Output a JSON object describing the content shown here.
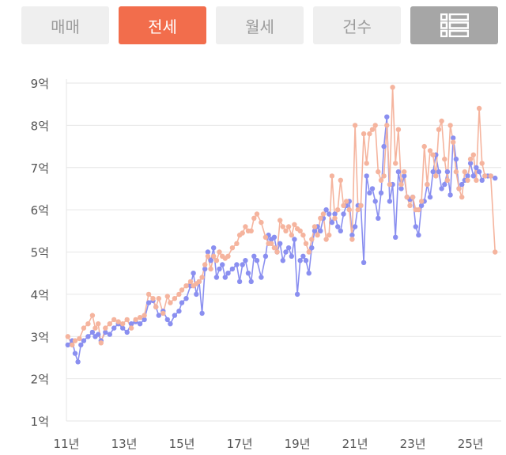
{
  "tabs": [
    {
      "label": "매매",
      "active": false
    },
    {
      "label": "전세",
      "active": true
    },
    {
      "label": "월세",
      "active": false
    },
    {
      "label": "건수",
      "active": false
    }
  ],
  "list_view_icon": "list-view-icon",
  "colors": {
    "accent": "#f26d4c",
    "series_blue": "#8a8ff0",
    "series_pink": "#f5b49e",
    "gridline": "#e6e6e6",
    "tab_inactive_bg": "#efefef",
    "icon_tab_bg": "#a6a6a6"
  },
  "chart_data": {
    "type": "line",
    "xlabel": "",
    "ylabel": "",
    "x_tick_labels": [
      "11년",
      "13년",
      "15년",
      "17년",
      "19년",
      "21년",
      "23년",
      "25년"
    ],
    "x_ticks": [
      2011,
      2013,
      2015,
      2017,
      2019,
      2021,
      2023,
      2025
    ],
    "y_tick_labels": [
      "1억",
      "2억",
      "3억",
      "4억",
      "5억",
      "6억",
      "7억",
      "8억",
      "9억"
    ],
    "y_ticks": [
      1,
      2,
      3,
      4,
      5,
      6,
      7,
      8,
      9
    ],
    "xlim": [
      2011,
      2025.9
    ],
    "ylim": [
      1,
      9
    ],
    "grid": true,
    "series": [
      {
        "color": "#8a8ff0",
        "points": [
          [
            2011.05,
            2.8
          ],
          [
            2011.2,
            2.9
          ],
          [
            2011.3,
            2.6
          ],
          [
            2011.4,
            2.4
          ],
          [
            2011.5,
            2.8
          ],
          [
            2011.6,
            2.9
          ],
          [
            2011.75,
            3.0
          ],
          [
            2011.9,
            3.1
          ],
          [
            2012.0,
            3.0
          ],
          [
            2012.1,
            3.05
          ],
          [
            2012.2,
            2.9
          ],
          [
            2012.35,
            3.1
          ],
          [
            2012.5,
            3.05
          ],
          [
            2012.65,
            3.2
          ],
          [
            2012.8,
            3.3
          ],
          [
            2012.95,
            3.2
          ],
          [
            2013.1,
            3.1
          ],
          [
            2013.25,
            3.3
          ],
          [
            2013.4,
            3.35
          ],
          [
            2013.55,
            3.3
          ],
          [
            2013.7,
            3.4
          ],
          [
            2013.85,
            3.8
          ],
          [
            2014.0,
            3.85
          ],
          [
            2014.1,
            3.7
          ],
          [
            2014.2,
            3.5
          ],
          [
            2014.35,
            3.6
          ],
          [
            2014.5,
            3.4
          ],
          [
            2014.6,
            3.3
          ],
          [
            2014.75,
            3.5
          ],
          [
            2014.9,
            3.6
          ],
          [
            2015.0,
            3.8
          ],
          [
            2015.15,
            3.9
          ],
          [
            2015.3,
            4.2
          ],
          [
            2015.4,
            4.5
          ],
          [
            2015.5,
            4.0
          ],
          [
            2015.6,
            4.3
          ],
          [
            2015.7,
            3.55
          ],
          [
            2015.8,
            4.6
          ],
          [
            2015.9,
            5.0
          ],
          [
            2016.0,
            4.8
          ],
          [
            2016.1,
            5.1
          ],
          [
            2016.2,
            4.4
          ],
          [
            2016.3,
            4.6
          ],
          [
            2016.4,
            4.7
          ],
          [
            2016.5,
            4.4
          ],
          [
            2016.6,
            4.5
          ],
          [
            2016.75,
            4.6
          ],
          [
            2016.9,
            4.7
          ],
          [
            2017.0,
            4.3
          ],
          [
            2017.1,
            4.7
          ],
          [
            2017.2,
            4.8
          ],
          [
            2017.3,
            4.5
          ],
          [
            2017.4,
            4.3
          ],
          [
            2017.5,
            4.9
          ],
          [
            2017.6,
            4.8
          ],
          [
            2017.75,
            4.4
          ],
          [
            2017.9,
            4.9
          ],
          [
            2018.0,
            5.4
          ],
          [
            2018.1,
            5.3
          ],
          [
            2018.2,
            5.35
          ],
          [
            2018.3,
            5.0
          ],
          [
            2018.4,
            5.2
          ],
          [
            2018.5,
            4.8
          ],
          [
            2018.6,
            5.0
          ],
          [
            2018.7,
            5.1
          ],
          [
            2018.8,
            4.9
          ],
          [
            2018.9,
            5.3
          ],
          [
            2019.0,
            4.0
          ],
          [
            2019.1,
            4.8
          ],
          [
            2019.2,
            4.9
          ],
          [
            2019.3,
            4.8
          ],
          [
            2019.4,
            4.5
          ],
          [
            2019.5,
            5.1
          ],
          [
            2019.6,
            5.5
          ],
          [
            2019.7,
            5.6
          ],
          [
            2019.8,
            5.5
          ],
          [
            2019.9,
            5.8
          ],
          [
            2020.0,
            6.0
          ],
          [
            2020.1,
            5.9
          ],
          [
            2020.2,
            5.7
          ],
          [
            2020.3,
            5.9
          ],
          [
            2020.4,
            5.6
          ],
          [
            2020.5,
            5.5
          ],
          [
            2020.6,
            5.9
          ],
          [
            2020.7,
            6.1
          ],
          [
            2020.8,
            6.2
          ],
          [
            2020.9,
            5.4
          ],
          [
            2021.0,
            5.6
          ],
          [
            2021.1,
            6.1
          ],
          [
            2021.2,
            6.1
          ],
          [
            2021.3,
            4.75
          ],
          [
            2021.4,
            6.8
          ],
          [
            2021.5,
            6.4
          ],
          [
            2021.6,
            6.5
          ],
          [
            2021.7,
            6.2
          ],
          [
            2021.8,
            5.8
          ],
          [
            2021.9,
            6.4
          ],
          [
            2022.0,
            7.5
          ],
          [
            2022.1,
            8.2
          ],
          [
            2022.2,
            6.2
          ],
          [
            2022.3,
            6.6
          ],
          [
            2022.4,
            5.35
          ],
          [
            2022.5,
            6.9
          ],
          [
            2022.6,
            6.5
          ],
          [
            2022.7,
            6.8
          ],
          [
            2022.8,
            6.3
          ],
          [
            2022.9,
            6.25
          ],
          [
            2023.0,
            6.3
          ],
          [
            2023.1,
            5.6
          ],
          [
            2023.2,
            5.4
          ],
          [
            2023.3,
            6.1
          ],
          [
            2023.4,
            6.2
          ],
          [
            2023.5,
            6.6
          ],
          [
            2023.6,
            6.3
          ],
          [
            2023.7,
            6.9
          ],
          [
            2023.8,
            7.3
          ],
          [
            2023.9,
            6.9
          ],
          [
            2024.0,
            6.5
          ],
          [
            2024.1,
            6.6
          ],
          [
            2024.2,
            6.9
          ],
          [
            2024.3,
            6.35
          ],
          [
            2024.4,
            7.7
          ],
          [
            2024.5,
            7.2
          ],
          [
            2024.6,
            6.5
          ],
          [
            2024.7,
            6.6
          ],
          [
            2024.8,
            6.7
          ],
          [
            2024.9,
            6.8
          ],
          [
            2025.0,
            7.1
          ],
          [
            2025.1,
            6.8
          ],
          [
            2025.2,
            7.0
          ],
          [
            2025.3,
            6.9
          ],
          [
            2025.4,
            6.7
          ],
          [
            2025.5,
            6.8
          ],
          [
            2025.6,
            6.8
          ],
          [
            2025.7,
            6.8
          ],
          [
            2025.85,
            6.75
          ]
        ]
      },
      {
        "color": "#f5b49e",
        "points": [
          [
            2011.05,
            3.0
          ],
          [
            2011.2,
            2.8
          ],
          [
            2011.3,
            2.9
          ],
          [
            2011.45,
            2.95
          ],
          [
            2011.6,
            3.2
          ],
          [
            2011.75,
            3.3
          ],
          [
            2011.9,
            3.5
          ],
          [
            2012.0,
            3.2
          ],
          [
            2012.1,
            3.3
          ],
          [
            2012.2,
            2.85
          ],
          [
            2012.35,
            3.2
          ],
          [
            2012.5,
            3.3
          ],
          [
            2012.65,
            3.4
          ],
          [
            2012.8,
            3.35
          ],
          [
            2012.95,
            3.3
          ],
          [
            2013.1,
            3.4
          ],
          [
            2013.25,
            3.2
          ],
          [
            2013.4,
            3.4
          ],
          [
            2013.55,
            3.45
          ],
          [
            2013.7,
            3.5
          ],
          [
            2013.85,
            4.0
          ],
          [
            2014.0,
            3.9
          ],
          [
            2014.1,
            3.7
          ],
          [
            2014.2,
            3.9
          ],
          [
            2014.35,
            3.55
          ],
          [
            2014.5,
            3.95
          ],
          [
            2014.6,
            3.8
          ],
          [
            2014.75,
            3.9
          ],
          [
            2014.9,
            4.0
          ],
          [
            2015.0,
            4.1
          ],
          [
            2015.15,
            4.2
          ],
          [
            2015.3,
            4.3
          ],
          [
            2015.4,
            4.2
          ],
          [
            2015.5,
            4.25
          ],
          [
            2015.6,
            4.3
          ],
          [
            2015.7,
            4.4
          ],
          [
            2015.8,
            4.7
          ],
          [
            2015.9,
            4.9
          ],
          [
            2016.0,
            4.6
          ],
          [
            2016.1,
            4.9
          ],
          [
            2016.2,
            4.8
          ],
          [
            2016.3,
            5.0
          ],
          [
            2016.4,
            4.9
          ],
          [
            2016.5,
            4.85
          ],
          [
            2016.6,
            4.9
          ],
          [
            2016.75,
            5.1
          ],
          [
            2016.9,
            5.2
          ],
          [
            2017.0,
            5.4
          ],
          [
            2017.1,
            5.45
          ],
          [
            2017.2,
            5.6
          ],
          [
            2017.3,
            5.5
          ],
          [
            2017.4,
            5.5
          ],
          [
            2017.5,
            5.8
          ],
          [
            2017.6,
            5.9
          ],
          [
            2017.75,
            5.7
          ],
          [
            2017.9,
            5.35
          ],
          [
            2018.0,
            5.2
          ],
          [
            2018.1,
            5.2
          ],
          [
            2018.2,
            5.1
          ],
          [
            2018.3,
            5.0
          ],
          [
            2018.4,
            5.75
          ],
          [
            2018.5,
            5.6
          ],
          [
            2018.6,
            5.5
          ],
          [
            2018.7,
            5.6
          ],
          [
            2018.8,
            5.4
          ],
          [
            2018.9,
            5.65
          ],
          [
            2019.0,
            5.55
          ],
          [
            2019.1,
            5.5
          ],
          [
            2019.2,
            5.4
          ],
          [
            2019.3,
            5.2
          ],
          [
            2019.4,
            5.0
          ],
          [
            2019.5,
            5.3
          ],
          [
            2019.6,
            5.6
          ],
          [
            2019.7,
            5.4
          ],
          [
            2019.8,
            5.8
          ],
          [
            2019.9,
            5.9
          ],
          [
            2020.0,
            5.3
          ],
          [
            2020.1,
            5.4
          ],
          [
            2020.2,
            6.8
          ],
          [
            2020.3,
            5.8
          ],
          [
            2020.4,
            6.0
          ],
          [
            2020.5,
            6.7
          ],
          [
            2020.6,
            6.1
          ],
          [
            2020.7,
            6.2
          ],
          [
            2020.8,
            6.0
          ],
          [
            2020.9,
            5.3
          ],
          [
            2021.0,
            8.0
          ],
          [
            2021.1,
            6.0
          ],
          [
            2021.2,
            6.1
          ],
          [
            2021.3,
            7.8
          ],
          [
            2021.4,
            7.1
          ],
          [
            2021.5,
            7.8
          ],
          [
            2021.6,
            7.9
          ],
          [
            2021.7,
            8.0
          ],
          [
            2021.8,
            6.9
          ],
          [
            2021.9,
            6.7
          ],
          [
            2022.0,
            6.8
          ],
          [
            2022.1,
            8.0
          ],
          [
            2022.2,
            6.6
          ],
          [
            2022.3,
            8.9
          ],
          [
            2022.4,
            7.1
          ],
          [
            2022.5,
            7.9
          ],
          [
            2022.6,
            6.6
          ],
          [
            2022.7,
            6.9
          ],
          [
            2022.8,
            6.3
          ],
          [
            2022.9,
            6.1
          ],
          [
            2023.0,
            6.3
          ],
          [
            2023.1,
            6.0
          ],
          [
            2023.2,
            6.0
          ],
          [
            2023.3,
            6.2
          ],
          [
            2023.4,
            7.5
          ],
          [
            2023.5,
            6.6
          ],
          [
            2023.6,
            7.4
          ],
          [
            2023.7,
            7.3
          ],
          [
            2023.8,
            6.8
          ],
          [
            2023.9,
            7.9
          ],
          [
            2024.0,
            8.1
          ],
          [
            2024.1,
            7.2
          ],
          [
            2024.2,
            6.7
          ],
          [
            2024.3,
            8.0
          ],
          [
            2024.4,
            7.6
          ],
          [
            2024.5,
            6.9
          ],
          [
            2024.6,
            6.5
          ],
          [
            2024.7,
            6.3
          ],
          [
            2024.8,
            6.9
          ],
          [
            2024.9,
            6.7
          ],
          [
            2025.0,
            7.2
          ],
          [
            2025.1,
            7.3
          ],
          [
            2025.2,
            6.7
          ],
          [
            2025.3,
            8.4
          ],
          [
            2025.4,
            7.1
          ],
          [
            2025.5,
            6.8
          ],
          [
            2025.7,
            6.8
          ],
          [
            2025.85,
            5.0
          ]
        ]
      }
    ]
  }
}
